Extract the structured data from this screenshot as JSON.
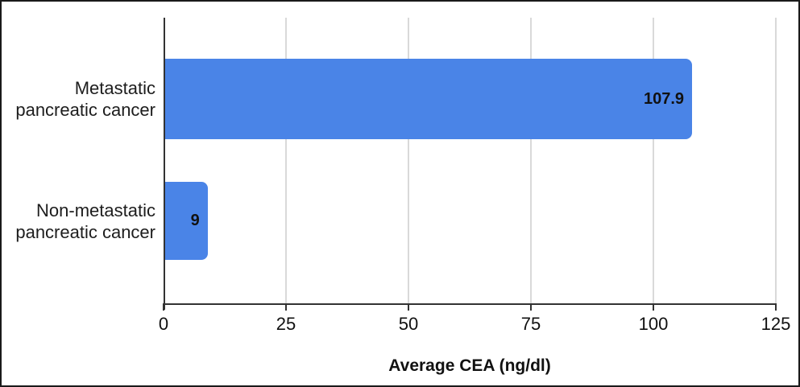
{
  "chart_data": {
    "type": "bar",
    "orientation": "horizontal",
    "title": "",
    "categories": [
      "Metastatic pancreatic cancer",
      "Non-metastatic pancreatic cancer"
    ],
    "category_lines": [
      [
        "Metastatic",
        "pancreatic cancer"
      ],
      [
        "Non-metastatic",
        "pancreatic cancer"
      ]
    ],
    "values": [
      107.9,
      9
    ],
    "value_labels": [
      "107.9",
      "9"
    ],
    "xlabel": "Average CEA (ng/dl)",
    "ylabel": "",
    "xlim": [
      0,
      125
    ],
    "xticks": [
      0,
      25,
      50,
      75,
      100,
      125
    ],
    "grid": true,
    "legend": false,
    "colors": {
      "bar": "#4a84e7",
      "gridline": "#d9d9d9",
      "axis": "#333333",
      "text": "#1d1d1d",
      "value_text": "#111111",
      "frame_border": "#1a1a1a",
      "background": "#ffffff"
    }
  }
}
